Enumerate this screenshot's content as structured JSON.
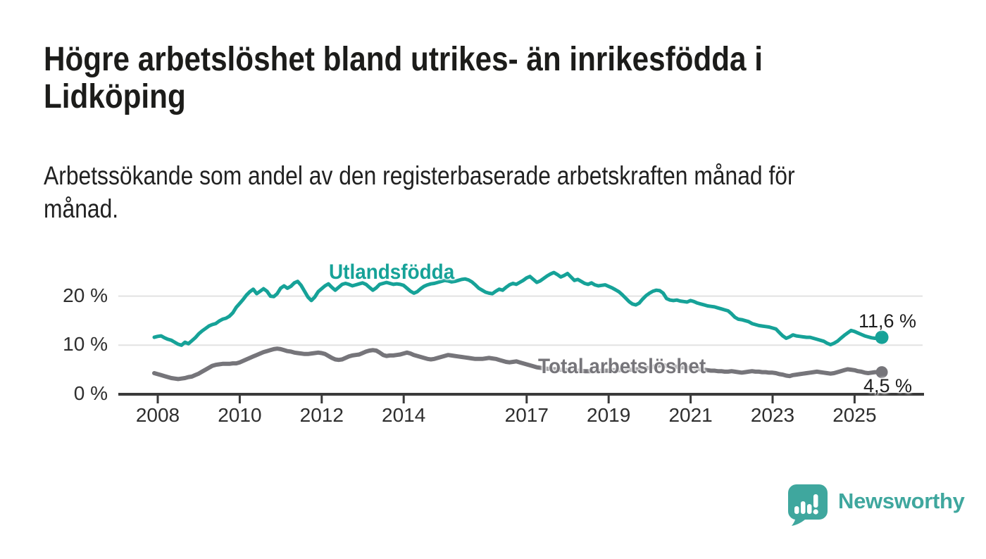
{
  "title": {
    "lines": [
      "Högre arbetslöshet bland utrikes- än inrikesfödda i",
      "Lidköping"
    ]
  },
  "subtitle": {
    "lines": [
      "Arbetssökande som andel av den registerbaserade arbetskraften månad för",
      "månad."
    ]
  },
  "branding": {
    "logo_text": "Newsworthy",
    "logo_color": "#3fa79e"
  },
  "colors": {
    "accent_teal": "#16a298",
    "neutral_gray": "#76757a",
    "axis": "#3a3a3a",
    "gridline": "#e2e2e2",
    "text": "#1c1c1a"
  },
  "chart_data": {
    "type": "line",
    "title": "Högre arbetslöshet bland utrikes- än inrikesfödda i Lidköping",
    "subtitle": "Arbetssökande som andel av den registerbaserade arbetskraften månad för månad.",
    "unit": "%",
    "frequency": "monthly",
    "x_start": {
      "year": 2008,
      "month": 1
    },
    "x_end": {
      "year": 2025,
      "month": 10
    },
    "grid": "horizontal",
    "legend_position": "inline-labels",
    "x_axis": {
      "ticks": [
        2008,
        2010,
        2012,
        2014,
        2017,
        2019,
        2021,
        2023,
        2025
      ]
    },
    "y_axis": {
      "range": [
        0,
        26
      ],
      "ticks": [
        {
          "value": 0,
          "label": "0 %"
        },
        {
          "value": 10,
          "label": "10 %"
        },
        {
          "value": 20,
          "label": "20 %"
        }
      ]
    },
    "series": [
      {
        "name": "Utlandsfödda",
        "color": "#16a298",
        "end_value": 11.6,
        "end_label": "11,6 %",
        "values": [
          11.6,
          11.8,
          11.9,
          11.5,
          11.2,
          11.0,
          10.6,
          10.2,
          10.0,
          10.6,
          10.3,
          10.9,
          11.5,
          12.3,
          12.9,
          13.4,
          13.9,
          14.2,
          14.4,
          14.9,
          15.3,
          15.5,
          15.9,
          16.6,
          17.7,
          18.5,
          19.3,
          20.2,
          20.9,
          21.4,
          20.5,
          21.0,
          21.5,
          21.0,
          20.0,
          19.9,
          20.5,
          21.6,
          22.1,
          21.6,
          22.0,
          22.7,
          23.0,
          22.2,
          21.0,
          19.8,
          19.1,
          19.8,
          20.9,
          21.5,
          22.1,
          22.5,
          21.8,
          21.2,
          21.8,
          22.4,
          22.6,
          22.4,
          22.1,
          22.3,
          22.5,
          22.7,
          22.4,
          21.8,
          21.2,
          21.7,
          22.4,
          22.6,
          22.8,
          22.6,
          22.4,
          22.5,
          22.4,
          22.2,
          21.6,
          21.0,
          20.6,
          20.9,
          21.5,
          22.0,
          22.3,
          22.5,
          22.6,
          22.8,
          23.0,
          23.2,
          23.1,
          22.9,
          23.0,
          23.2,
          23.4,
          23.5,
          23.3,
          22.9,
          22.3,
          21.6,
          21.2,
          20.8,
          20.6,
          20.5,
          21.0,
          21.4,
          21.2,
          21.8,
          22.3,
          22.6,
          22.4,
          22.8,
          23.2,
          23.7,
          24.0,
          23.4,
          22.8,
          23.1,
          23.6,
          24.1,
          24.5,
          24.8,
          24.4,
          23.9,
          24.2,
          24.6,
          23.9,
          23.2,
          23.4,
          23.0,
          22.6,
          22.4,
          22.7,
          22.3,
          22.1,
          22.2,
          22.3,
          22.0,
          21.7,
          21.3,
          20.9,
          20.3,
          19.6,
          18.9,
          18.4,
          18.2,
          18.6,
          19.4,
          20.1,
          20.6,
          21.0,
          21.2,
          21.1,
          20.6,
          19.5,
          19.2,
          19.1,
          19.2,
          19.0,
          18.9,
          18.8,
          19.1,
          18.9,
          18.6,
          18.4,
          18.2,
          18.0,
          17.9,
          17.8,
          17.6,
          17.4,
          17.2,
          17.0,
          16.4,
          15.7,
          15.3,
          15.2,
          15.0,
          14.8,
          14.4,
          14.2,
          14.0,
          13.9,
          13.8,
          13.7,
          13.5,
          13.3,
          12.6,
          11.9,
          11.4,
          11.7,
          12.1,
          11.9,
          11.8,
          11.7,
          11.6,
          11.6,
          11.4,
          11.2,
          11.0,
          10.8,
          10.4,
          10.1,
          10.4,
          10.8,
          11.4,
          12.0,
          12.5,
          13.0,
          12.8,
          12.5,
          12.2,
          11.9,
          11.7,
          11.5,
          11.4,
          11.5,
          11.6
        ]
      },
      {
        "name": "Total arbetslöshet",
        "color": "#76757a",
        "end_value": 4.5,
        "end_label": "4,5 %",
        "values": [
          4.3,
          4.1,
          3.9,
          3.7,
          3.5,
          3.3,
          3.2,
          3.1,
          3.2,
          3.3,
          3.5,
          3.6,
          3.9,
          4.2,
          4.6,
          5.0,
          5.4,
          5.8,
          6.0,
          6.1,
          6.2,
          6.2,
          6.2,
          6.3,
          6.3,
          6.5,
          6.8,
          7.1,
          7.4,
          7.7,
          8.0,
          8.3,
          8.6,
          8.8,
          9.0,
          9.2,
          9.3,
          9.2,
          9.0,
          8.8,
          8.7,
          8.5,
          8.4,
          8.3,
          8.2,
          8.2,
          8.3,
          8.4,
          8.5,
          8.4,
          8.2,
          7.8,
          7.4,
          7.1,
          7.0,
          7.1,
          7.4,
          7.7,
          7.9,
          8.0,
          8.1,
          8.4,
          8.7,
          8.9,
          9.0,
          8.9,
          8.5,
          8.0,
          7.8,
          7.9,
          7.9,
          8.0,
          8.1,
          8.3,
          8.5,
          8.3,
          8.0,
          7.8,
          7.6,
          7.4,
          7.2,
          7.1,
          7.2,
          7.4,
          7.6,
          7.8,
          8.0,
          7.9,
          7.8,
          7.7,
          7.6,
          7.5,
          7.4,
          7.3,
          7.2,
          7.2,
          7.2,
          7.3,
          7.4,
          7.3,
          7.2,
          7.0,
          6.8,
          6.6,
          6.5,
          6.6,
          6.7,
          6.5,
          6.3,
          6.1,
          5.9,
          5.7,
          5.5,
          5.4,
          5.3,
          5.2,
          5.2,
          5.1,
          5.1,
          5.0,
          5.0,
          4.9,
          4.9,
          4.8,
          4.8,
          4.8,
          4.7,
          4.7,
          4.7,
          4.7,
          4.7,
          4.8,
          4.8,
          4.8,
          4.9,
          4.9,
          4.9,
          5.0,
          5.0,
          5.0,
          5.0,
          5.1,
          5.1,
          5.2,
          5.3,
          5.4,
          5.6,
          5.8,
          5.9,
          5.9,
          5.8,
          5.8,
          5.7,
          5.6,
          5.5,
          5.5,
          5.4,
          5.4,
          5.3,
          5.2,
          5.1,
          5.0,
          4.9,
          4.8,
          4.8,
          4.7,
          4.7,
          4.6,
          4.6,
          4.7,
          4.6,
          4.5,
          4.4,
          4.5,
          4.6,
          4.7,
          4.6,
          4.6,
          4.5,
          4.5,
          4.4,
          4.4,
          4.3,
          4.1,
          4.0,
          3.8,
          3.7,
          3.9,
          4.0,
          4.1,
          4.2,
          4.3,
          4.4,
          4.5,
          4.6,
          4.5,
          4.4,
          4.3,
          4.2,
          4.3,
          4.5,
          4.7,
          4.9,
          5.1,
          5.0,
          4.9,
          4.7,
          4.6,
          4.4,
          4.3,
          4.4,
          4.5,
          4.5,
          4.5
        ]
      }
    ]
  }
}
